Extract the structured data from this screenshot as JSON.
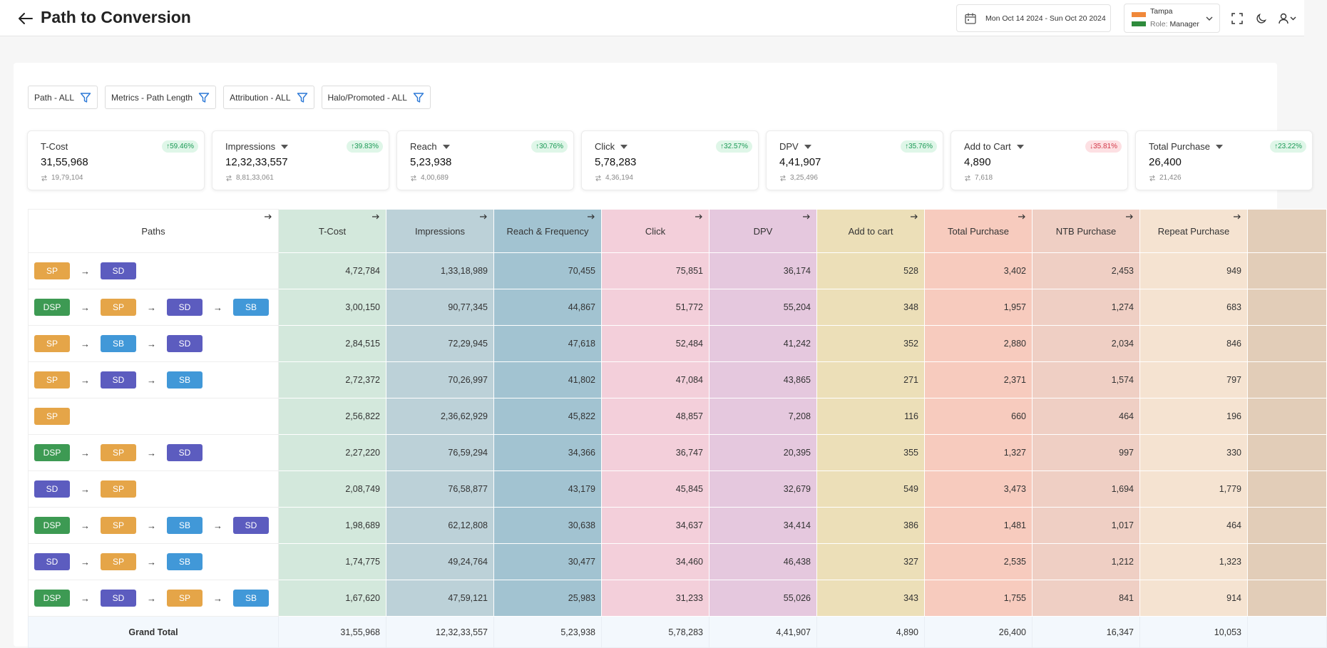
{
  "header": {
    "title": "Path to Conversion",
    "date_range": "Mon Oct 14 2024 - Sun Oct 20 2024",
    "user": {
      "name": "Tampa",
      "role_label": "Role:",
      "role": "Manager"
    }
  },
  "filters": [
    {
      "label": "Path - ALL"
    },
    {
      "label": "Metrics - Path Length"
    },
    {
      "label": "Attribution - ALL"
    },
    {
      "label": "Halo/Promoted - ALL"
    }
  ],
  "kpis": [
    {
      "label": "T-Cost",
      "value": "31,55,968",
      "prev": "19,79,104",
      "change": "59.46%",
      "direction": "up",
      "has_caret": false
    },
    {
      "label": "Impressions",
      "value": "12,32,33,557",
      "prev": "8,81,33,061",
      "change": "39.83%",
      "direction": "up",
      "has_caret": true
    },
    {
      "label": "Reach",
      "value": "5,23,938",
      "prev": "4,00,689",
      "change": "30.76%",
      "direction": "up",
      "has_caret": true
    },
    {
      "label": "Click",
      "value": "5,78,283",
      "prev": "4,36,194",
      "change": "32.57%",
      "direction": "up",
      "has_caret": true
    },
    {
      "label": "DPV",
      "value": "4,41,907",
      "prev": "3,25,496",
      "change": "35.76%",
      "direction": "up",
      "has_caret": true
    },
    {
      "label": "Add to Cart",
      "value": "4,890",
      "prev": "7,618",
      "change": "35.81%",
      "direction": "down",
      "has_caret": true
    },
    {
      "label": "Total Purchase",
      "value": "26,400",
      "prev": "21,426",
      "change": "23.22%",
      "direction": "up",
      "has_caret": true
    }
  ],
  "table": {
    "paths_header": "Paths",
    "columns": [
      {
        "label": "T-Cost",
        "color": "#d3e8dc"
      },
      {
        "label": "Impressions",
        "color": "#bcd1d8"
      },
      {
        "label": "Reach & Frequency",
        "color": "#a2c3d1"
      },
      {
        "label": "Click",
        "color": "#f3cfda"
      },
      {
        "label": "DPV",
        "color": "#e5c8de"
      },
      {
        "label": "Add to cart",
        "color": "#ecdfb8"
      },
      {
        "label": "Total Purchase",
        "color": "#f7cbbe"
      },
      {
        "label": "NTB Purchase",
        "color": "#efcfc4"
      },
      {
        "label": "Repeat Purchase",
        "color": "#f5e3d1"
      },
      {
        "label": "",
        "color": "#e2cdb8"
      }
    ],
    "rows": [
      {
        "path": [
          "SP",
          "SD"
        ],
        "values": [
          "4,72,784",
          "1,33,18,989",
          "70,455",
          "75,851",
          "36,174",
          "528",
          "3,402",
          "2,453",
          "949",
          ""
        ]
      },
      {
        "path": [
          "DSP",
          "SP",
          "SD",
          "SB"
        ],
        "values": [
          "3,00,150",
          "90,77,345",
          "44,867",
          "51,772",
          "55,204",
          "348",
          "1,957",
          "1,274",
          "683",
          ""
        ]
      },
      {
        "path": [
          "SP",
          "SB",
          "SD"
        ],
        "values": [
          "2,84,515",
          "72,29,945",
          "47,618",
          "52,484",
          "41,242",
          "352",
          "2,880",
          "2,034",
          "846",
          ""
        ]
      },
      {
        "path": [
          "SP",
          "SD",
          "SB"
        ],
        "values": [
          "2,72,372",
          "70,26,997",
          "41,802",
          "47,084",
          "43,865",
          "271",
          "2,371",
          "1,574",
          "797",
          ""
        ]
      },
      {
        "path": [
          "SP"
        ],
        "values": [
          "2,56,822",
          "2,36,62,929",
          "45,822",
          "48,857",
          "7,208",
          "116",
          "660",
          "464",
          "196",
          ""
        ]
      },
      {
        "path": [
          "DSP",
          "SP",
          "SD"
        ],
        "values": [
          "2,27,220",
          "76,59,294",
          "34,366",
          "36,747",
          "20,395",
          "355",
          "1,327",
          "997",
          "330",
          ""
        ]
      },
      {
        "path": [
          "SD",
          "SP"
        ],
        "values": [
          "2,08,749",
          "76,58,877",
          "43,179",
          "45,845",
          "32,679",
          "549",
          "3,473",
          "1,694",
          "1,779",
          ""
        ]
      },
      {
        "path": [
          "DSP",
          "SP",
          "SB",
          "SD"
        ],
        "values": [
          "1,98,689",
          "62,12,808",
          "30,638",
          "34,637",
          "34,414",
          "386",
          "1,481",
          "1,017",
          "464",
          ""
        ]
      },
      {
        "path": [
          "SD",
          "SP",
          "SB"
        ],
        "values": [
          "1,74,775",
          "49,24,764",
          "30,477",
          "34,460",
          "46,438",
          "327",
          "2,535",
          "1,212",
          "1,323",
          ""
        ]
      },
      {
        "path": [
          "DSP",
          "SD",
          "SP",
          "SB"
        ],
        "values": [
          "1,67,620",
          "47,59,121",
          "25,983",
          "31,233",
          "55,026",
          "343",
          "1,755",
          "841",
          "914",
          ""
        ]
      }
    ],
    "total": {
      "label": "Grand Total",
      "values": [
        "31,55,968",
        "12,32,33,557",
        "5,23,938",
        "5,78,283",
        "4,41,907",
        "4,890",
        "26,400",
        "16,347",
        "10,053",
        ""
      ]
    }
  }
}
